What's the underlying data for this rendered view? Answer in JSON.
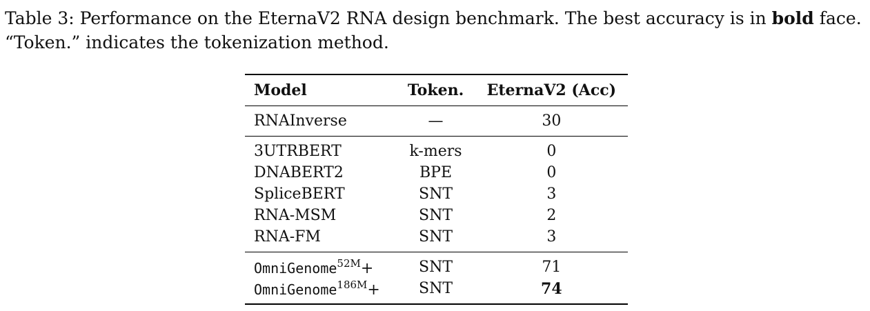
{
  "caption": {
    "label": "Table 3:",
    "text_before_bold": "Performance on the EternaV2 RNA design benchmark. The best accuracy is in",
    "bold_word": "bold",
    "text_after_bold": "face.",
    "line2": "“Token.” indicates the tokenization method."
  },
  "table": {
    "headers": [
      "Model",
      "Token.",
      "EternaV2 (Acc)"
    ],
    "baseline": [
      {
        "model": "RNAInverse",
        "token": "—",
        "acc": "30"
      }
    ],
    "pretrained": [
      {
        "model": "3UTRBERT",
        "token": "k-mers",
        "acc": "0"
      },
      {
        "model": "DNABERT2",
        "token": "BPE",
        "acc": "0"
      },
      {
        "model": "SpliceBERT",
        "token": "SNT",
        "acc": "3"
      },
      {
        "model": "RNA-MSM",
        "token": "SNT",
        "acc": "2"
      },
      {
        "model": "RNA-FM",
        "token": "SNT",
        "acc": "3"
      }
    ],
    "omnigenome": [
      {
        "model": "OmniGenome",
        "size": "52M",
        "suffix": "+",
        "token": "SNT",
        "acc": "71"
      },
      {
        "model": "OmniGenome",
        "size": "186M",
        "suffix": "+",
        "token": "SNT",
        "acc": "74",
        "best": true
      }
    ]
  }
}
